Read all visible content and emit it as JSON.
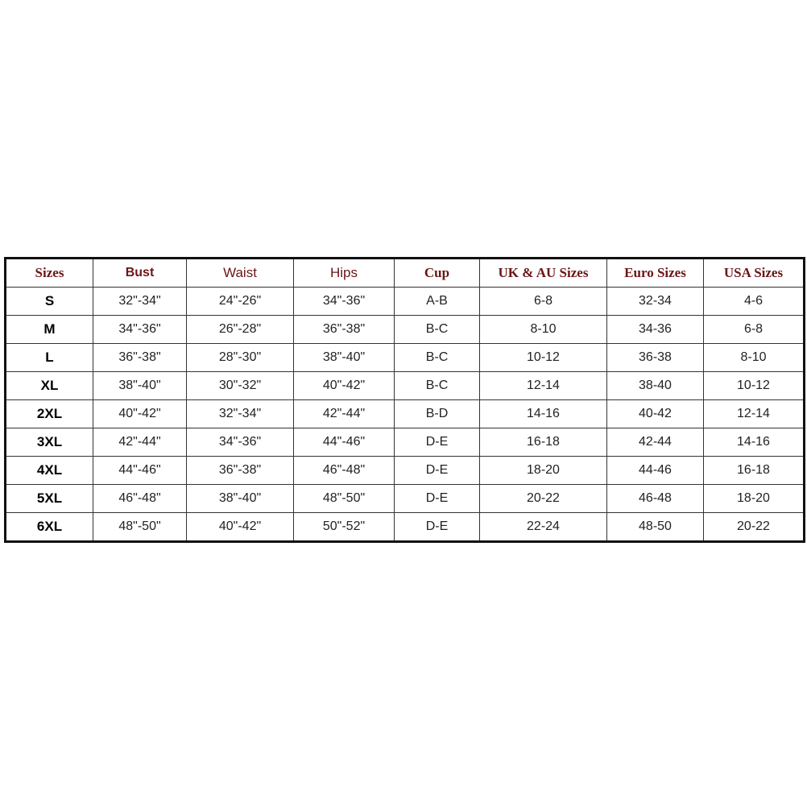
{
  "table": {
    "header": [
      "Sizes",
      "Bust",
      "Waist",
      "Hips",
      "Cup",
      "UK & AU Sizes",
      "Euro Sizes",
      "USA Sizes"
    ],
    "rows": [
      [
        "S",
        "32\"-34\"",
        "24\"-26\"",
        "34\"-36\"",
        "A-B",
        "6-8",
        "32-34",
        "4-6"
      ],
      [
        "M",
        "34\"-36\"",
        "26\"-28\"",
        "36\"-38\"",
        "B-C",
        "8-10",
        "34-36",
        "6-8"
      ],
      [
        "L",
        "36\"-38\"",
        "28\"-30\"",
        "38\"-40\"",
        "B-C",
        "10-12",
        "36-38",
        "8-10"
      ],
      [
        "XL",
        "38\"-40\"",
        "30\"-32\"",
        "40\"-42\"",
        "B-C",
        "12-14",
        "38-40",
        "10-12"
      ],
      [
        "2XL",
        "40\"-42\"",
        "32\"-34\"",
        "42\"-44\"",
        "B-D",
        "14-16",
        "40-42",
        "12-14"
      ],
      [
        "3XL",
        "42\"-44\"",
        "34\"-36\"",
        "44\"-46\"",
        "D-E",
        "16-18",
        "42-44",
        "14-16"
      ],
      [
        "4XL",
        "44\"-46\"",
        "36\"-38\"",
        "46\"-48\"",
        "D-E",
        "18-20",
        "44-46",
        "16-18"
      ],
      [
        "5XL",
        "46\"-48\"",
        "38\"-40\"",
        "48\"-50\"",
        "D-E",
        "20-22",
        "46-48",
        "18-20"
      ],
      [
        "6XL",
        "48\"-50\"",
        "40\"-42\"",
        "50\"-52\"",
        "D-E",
        "22-24",
        "48-50",
        "20-22"
      ]
    ]
  }
}
